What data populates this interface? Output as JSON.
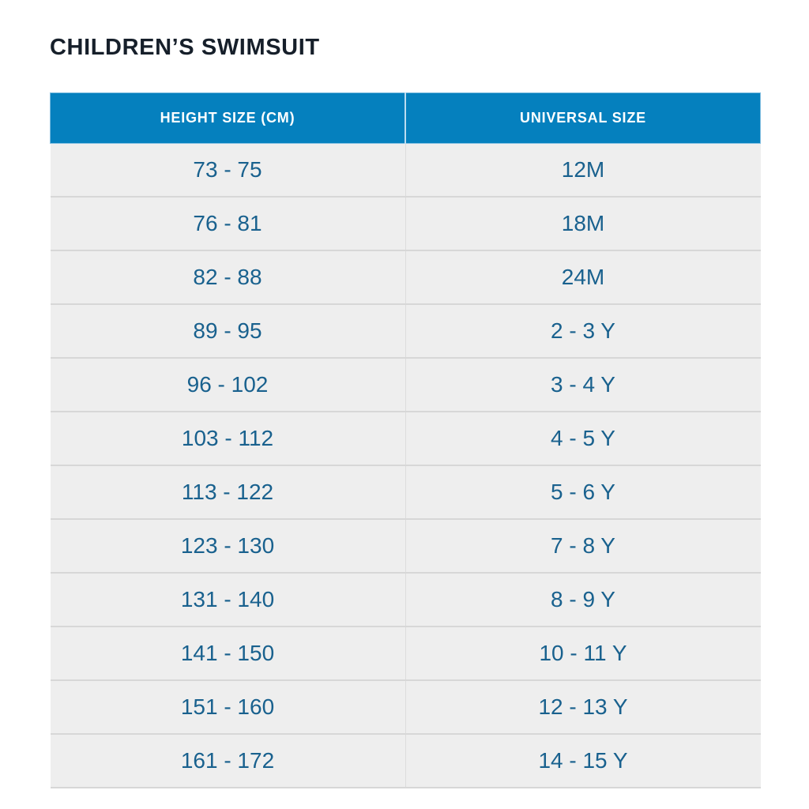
{
  "page": {
    "title": "CHILDREN’S SWIMSUIT"
  },
  "table": {
    "columns": [
      "HEIGHT SIZE (CM)",
      "UNIVERSAL SIZE"
    ],
    "rows": [
      [
        "73 - 75",
        "12M"
      ],
      [
        "76 - 81",
        "18M"
      ],
      [
        "82 - 88",
        "24M"
      ],
      [
        "89 - 95",
        "2 - 3 Y"
      ],
      [
        "96 - 102",
        "3 - 4 Y"
      ],
      [
        "103 - 112",
        "4 - 5 Y"
      ],
      [
        "113 - 122",
        "5 - 6 Y"
      ],
      [
        "123 - 130",
        "7 - 8 Y"
      ],
      [
        "131 - 140",
        "8 - 9 Y"
      ],
      [
        "141 - 150",
        "10 - 11 Y"
      ],
      [
        "151 - 160",
        "12 - 13 Y"
      ],
      [
        "161 - 172",
        "14 - 15 Y"
      ]
    ],
    "colors": {
      "header_bg": "#0580be",
      "header_text": "#ffffff",
      "row_bg": "#eeeeee",
      "cell_text": "#19618e",
      "separator": "#d7d7d7",
      "title_text": "#161f2a"
    }
  }
}
